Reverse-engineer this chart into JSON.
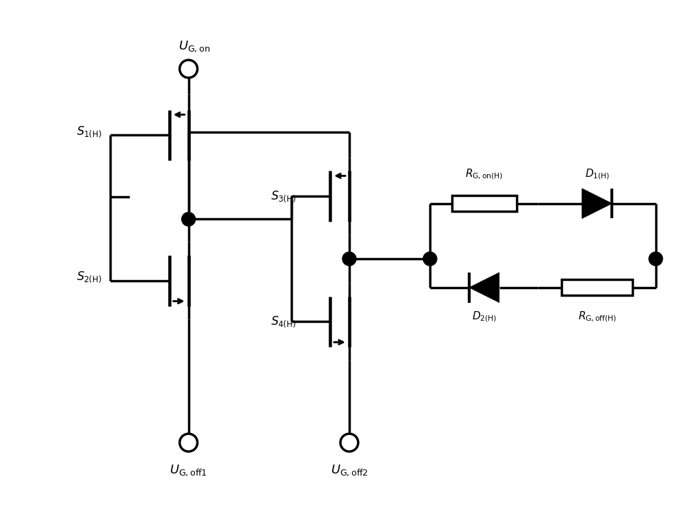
{
  "bg_color": "#ffffff",
  "line_color": "#000000",
  "line_width": 2.5,
  "figsize": [
    10.0,
    7.73
  ],
  "dpi": 100,
  "labels": {
    "UG_on": "$U_{\\mathrm{G,on}}$",
    "UG_off1": "$U_{\\mathrm{G,off1}}$",
    "UG_off2": "$U_{\\mathrm{G,off2}}$",
    "S1H": "$S_{1\\mathrm{(H)}}$",
    "S2H": "$S_{2\\mathrm{(H)}}$",
    "S3H": "$S_{3\\mathrm{(H)}}$",
    "S4H": "$S_{4\\mathrm{(H)}}$",
    "RG_on": "$R_{\\mathrm{G,on(H)}}$",
    "D1H": "$D_{1\\mathrm{(H)}}$",
    "D2H": "$D_{2\\mathrm{(H)}}$",
    "RG_off": "$R_{\\mathrm{G,off(H)}}$"
  }
}
